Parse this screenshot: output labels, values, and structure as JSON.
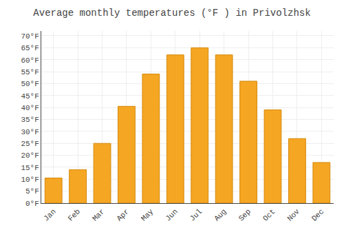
{
  "chart_data": {
    "type": "bar",
    "title": "Average monthly temperatures (°F ) in Privolzhsk",
    "categories": [
      "Jan",
      "Feb",
      "Mar",
      "Apr",
      "May",
      "Jun",
      "Jul",
      "Aug",
      "Sep",
      "Oct",
      "Nov",
      "Dec"
    ],
    "values": [
      10.5,
      14.0,
      25.0,
      40.5,
      54.0,
      62.0,
      65.0,
      62.0,
      51.0,
      39.0,
      27.0,
      17.0
    ],
    "color": "#F5A623",
    "ylim": [
      0,
      72
    ],
    "yticks": [
      {
        "value": 0,
        "label": "0°F"
      },
      {
        "value": 5,
        "label": "5°F"
      },
      {
        "value": 10,
        "label": "10°F"
      },
      {
        "value": 15,
        "label": "15°F"
      },
      {
        "value": 20,
        "label": "20°F"
      },
      {
        "value": 25,
        "label": "25°F"
      },
      {
        "value": 30,
        "label": "30°F"
      },
      {
        "value": 35,
        "label": "35°F"
      },
      {
        "value": 40,
        "label": "40°F"
      },
      {
        "value": 45,
        "label": "45°F"
      },
      {
        "value": 50,
        "label": "50°F"
      },
      {
        "value": 55,
        "label": "55°F"
      },
      {
        "value": 60,
        "label": "60°F"
      },
      {
        "value": 65,
        "label": "65°F"
      },
      {
        "value": 70,
        "label": "70°F"
      }
    ],
    "grid": true
  }
}
